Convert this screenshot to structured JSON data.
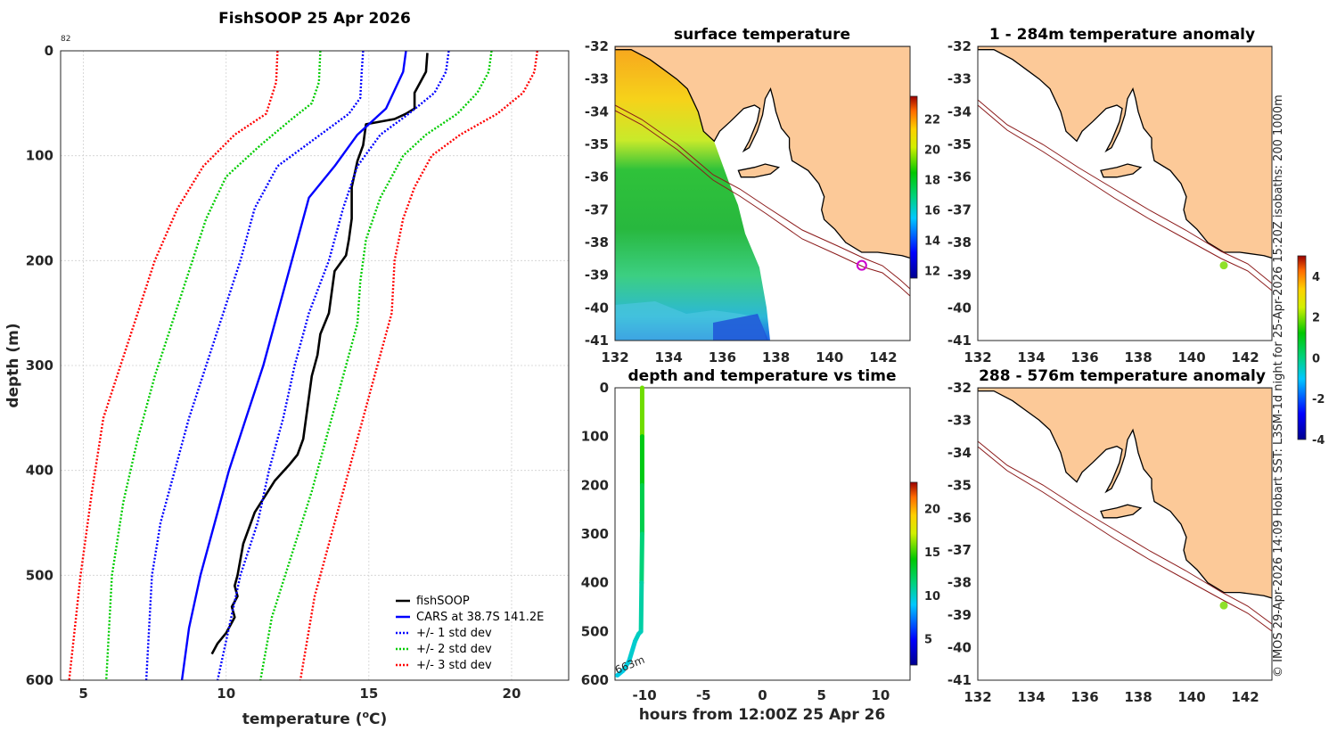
{
  "chart_data": [
    {
      "id": "profile",
      "type": "line",
      "title": "FishSOOP 25 Apr 2026",
      "corner_label": "82",
      "xlabel": "temperature (",
      "xlabel_sup": "o",
      "xlabel_suffix": "C)",
      "ylabel": "depth (m)",
      "xlim": [
        4.2,
        22
      ],
      "ylim": [
        0,
        600
      ],
      "xticks": [
        5,
        10,
        15,
        20
      ],
      "yticks": [
        0,
        100,
        200,
        300,
        400,
        500,
        600
      ],
      "legend": [
        "fishSOOP",
        "CARS at 38.7S 141.2E",
        "+/- 1 std dev",
        "+/- 2 std dev",
        "+/- 3 std dev"
      ],
      "legend_position": "bottom-right",
      "colors": {
        "fishsoop": "#000000",
        "cars": "#0000ff",
        "sd1": "#0000ff",
        "sd2": "#00cc00",
        "sd3": "#ff0000"
      },
      "series": [
        {
          "name": "fishSOOP",
          "temps": [
            17.05,
            17.0,
            16.6,
            16.6,
            16.3,
            15.9,
            14.9,
            14.8,
            14.6,
            14.4,
            14.4,
            14.3,
            14.2,
            13.8,
            13.7,
            13.6,
            13.3,
            13.2,
            13.0,
            12.9,
            12.8,
            12.7,
            12.5,
            12.2,
            11.7,
            11.0,
            10.6,
            10.4,
            10.3,
            10.4,
            10.2,
            10.3,
            10.0,
            9.7,
            9.5
          ],
          "depths": [
            2,
            20,
            40,
            55,
            60,
            65,
            70,
            90,
            105,
            130,
            160,
            180,
            195,
            210,
            230,
            250,
            270,
            290,
            310,
            330,
            350,
            370,
            385,
            395,
            410,
            440,
            470,
            500,
            510,
            520,
            530,
            540,
            555,
            565,
            575
          ]
        },
        {
          "name": "CARS",
          "temps": [
            16.3,
            16.2,
            15.6,
            14.6,
            13.8,
            12.9,
            12.4,
            11.9,
            11.3,
            10.7,
            10.1,
            9.6,
            9.1,
            8.7,
            8.45
          ],
          "depths": [
            0,
            20,
            55,
            80,
            110,
            140,
            190,
            240,
            300,
            350,
            400,
            450,
            500,
            550,
            600
          ]
        },
        {
          "name": "CARS -1sd",
          "temps": [
            14.8,
            14.75,
            14.7,
            14.3,
            13.3,
            11.8,
            11.0,
            10.5,
            9.9,
            9.3,
            8.7,
            8.2,
            7.7,
            7.4,
            7.2
          ],
          "depths": [
            0,
            20,
            45,
            60,
            80,
            110,
            150,
            200,
            250,
            300,
            350,
            400,
            450,
            500,
            600
          ]
        },
        {
          "name": "CARS +1sd",
          "temps": [
            17.8,
            17.7,
            17.3,
            16.4,
            15.4,
            14.6,
            14.1,
            13.6,
            12.9,
            12.4,
            12.0,
            11.5,
            11.1,
            10.5,
            10.1,
            9.7
          ],
          "depths": [
            0,
            20,
            40,
            60,
            80,
            110,
            150,
            200,
            250,
            300,
            350,
            400,
            450,
            500,
            550,
            600
          ]
        },
        {
          "name": "CARS -2sd",
          "temps": [
            13.3,
            13.25,
            13.0,
            12.3,
            11.2,
            10.0,
            9.3,
            8.7,
            8.1,
            7.5,
            6.9,
            6.4,
            6.0,
            5.8
          ],
          "depths": [
            0,
            30,
            50,
            65,
            90,
            120,
            160,
            210,
            260,
            310,
            370,
            430,
            500,
            600
          ]
        },
        {
          "name": "CARS +2sd",
          "temps": [
            19.3,
            19.2,
            18.8,
            18.1,
            17.0,
            16.2,
            15.4,
            14.9,
            14.7,
            14.6,
            14.1,
            13.6,
            13.0,
            12.3,
            11.6,
            11.2
          ],
          "depths": [
            0,
            20,
            40,
            60,
            80,
            100,
            140,
            180,
            220,
            260,
            310,
            360,
            420,
            480,
            540,
            600
          ]
        },
        {
          "name": "CARS -3sd",
          "temps": [
            11.8,
            11.75,
            11.4,
            10.3,
            9.2,
            8.3,
            7.5,
            6.9,
            6.3,
            5.7,
            5.3,
            4.9,
            4.5
          ],
          "depths": [
            0,
            30,
            60,
            80,
            110,
            150,
            200,
            250,
            300,
            350,
            420,
            500,
            600
          ]
        },
        {
          "name": "CARS +3sd",
          "temps": [
            20.9,
            20.8,
            20.4,
            19.5,
            18.2,
            17.2,
            16.6,
            16.2,
            15.9,
            15.8,
            15.3,
            14.6,
            13.9,
            13.1,
            12.6
          ],
          "depths": [
            0,
            20,
            40,
            60,
            80,
            100,
            130,
            160,
            200,
            250,
            300,
            370,
            440,
            520,
            600
          ]
        }
      ]
    },
    {
      "id": "sst_map",
      "type": "heatmap",
      "title": "surface temperature",
      "xlim": [
        132,
        143
      ],
      "ylim": [
        -41,
        -32
      ],
      "xticks": [
        132,
        134,
        136,
        138,
        140,
        142
      ],
      "yticks": [
        -32,
        -33,
        -34,
        -35,
        -36,
        -37,
        -38,
        -39,
        -40,
        -41
      ],
      "colorbar": {
        "min": 11.5,
        "max": 23.5,
        "ticks": [
          12,
          14,
          16,
          18,
          20,
          22
        ]
      },
      "marker": {
        "lon": 141.2,
        "lat": -38.7
      }
    },
    {
      "id": "depth_time",
      "type": "scatter",
      "title": "depth and temperature vs time",
      "xlabel": "hours from 12:00Z 25 Apr 26",
      "xlim": [
        -12.5,
        12.5
      ],
      "ylim": [
        0,
        600
      ],
      "xticks": [
        -10,
        -5,
        0,
        5,
        10
      ],
      "yticks": [
        0,
        100,
        200,
        300,
        400,
        500,
        600
      ],
      "colorbar": {
        "min": 2,
        "max": 23,
        "ticks": [
          5,
          10,
          15,
          20
        ]
      },
      "annotation": "663m",
      "points": [
        {
          "h": -10.2,
          "d": 0,
          "t": 17.0
        },
        {
          "h": -10.2,
          "d": 100,
          "t": 14.5
        },
        {
          "h": -10.2,
          "d": 200,
          "t": 13.0
        },
        {
          "h": -10.2,
          "d": 300,
          "t": 12.0
        },
        {
          "h": -10.25,
          "d": 400,
          "t": 11.0
        },
        {
          "h": -10.3,
          "d": 500,
          "t": 10.3
        },
        {
          "h": -10.5,
          "d": 505,
          "t": 10.2
        },
        {
          "h": -10.8,
          "d": 520,
          "t": 10.0
        },
        {
          "h": -11.3,
          "d": 560,
          "t": 9.7
        },
        {
          "h": -11.8,
          "d": 580,
          "t": 9.5
        },
        {
          "h": -12.3,
          "d": 590,
          "t": 9.4
        }
      ]
    },
    {
      "id": "anom_upper",
      "type": "heatmap",
      "title": "1 - 284m temperature anomaly",
      "xlim": [
        132,
        143
      ],
      "ylim": [
        -41,
        -32
      ],
      "xticks": [
        132,
        134,
        136,
        138,
        140,
        142
      ],
      "yticks": [
        -32,
        -33,
        -34,
        -35,
        -36,
        -37,
        -38,
        -39,
        -40,
        -41
      ],
      "marker": {
        "lon": 141.2,
        "lat": -38.7
      }
    },
    {
      "id": "anom_lower",
      "type": "heatmap",
      "title": "288 - 576m temperature anomaly",
      "xlim": [
        132,
        143
      ],
      "ylim": [
        -41,
        -32
      ],
      "xticks": [
        132,
        134,
        136,
        138,
        140,
        142
      ],
      "yticks": [
        -32,
        -33,
        -34,
        -35,
        -36,
        -37,
        -38,
        -39,
        -40,
        -41
      ],
      "colorbar": {
        "min": -4,
        "max": 5,
        "ticks": [
          -4,
          -2,
          0,
          2,
          4
        ]
      },
      "marker": {
        "lon": 141.2,
        "lat": -38.7
      }
    }
  ],
  "footer_note": "© IMOS 29-Apr-2026 14:09 Hobart SST: L3SM-1d night for 25-Apr-2026 15:20Z isobaths: 200  1000m"
}
